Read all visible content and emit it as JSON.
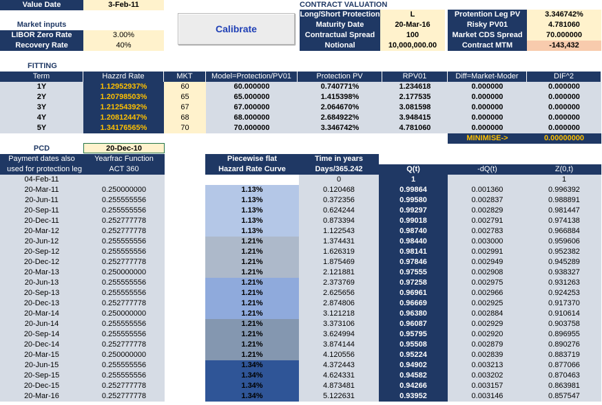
{
  "header": {
    "value_date_label": "Value Date",
    "value_date": "3-Feb-11",
    "market_inputs_label": "Market inputs",
    "libor_label": "LIBOR Zero Rate",
    "libor_value": "3.00%",
    "recovery_label": "Recovery Rate",
    "recovery_value": "40%"
  },
  "calibrate_button": "Calibrate",
  "contract": {
    "title": "CONTRACT VALUATION",
    "rows": [
      {
        "label": "Long/Short Protection",
        "value": "L"
      },
      {
        "label": "Maturity Date",
        "value": "20-Mar-16"
      },
      {
        "label": "Contractual Spread",
        "value": "100"
      },
      {
        "label": "Notional",
        "value": "10,000,000.00"
      }
    ],
    "right_rows": [
      {
        "label": "Protention Leg PV",
        "value": "3.346742%"
      },
      {
        "label": "Risky PV01",
        "value": "4.781060"
      },
      {
        "label": "Market CDS Spread",
        "value": "70.000000"
      },
      {
        "label": "Contract MTM",
        "value": "-143,432"
      }
    ]
  },
  "fitting": {
    "title": "FITTING",
    "headers": [
      "Term",
      "Hazzrd Rate",
      "MKT",
      "Model=Protection/PV01",
      "Protection PV",
      "RPV01",
      "Diff=Market-Moder",
      "DIF^2"
    ],
    "rows": [
      [
        "1Y",
        "1.12952937%",
        "60",
        "60.000000",
        "0.740771%",
        "1.234618",
        "0.000000",
        "0.000000"
      ],
      [
        "2Y",
        "1.20798503%",
        "65",
        "65.000000",
        "1.415398%",
        "2.177535",
        "0.000000",
        "0.000000"
      ],
      [
        "3Y",
        "1.21254392%",
        "67",
        "67.000000",
        "2.064670%",
        "3.081598",
        "0.000000",
        "0.000000"
      ],
      [
        "4Y",
        "1.20812447%",
        "68",
        "68.000000",
        "2.684922%",
        "3.948415",
        "0.000000",
        "0.000000"
      ],
      [
        "5Y",
        "1.34176565%",
        "70",
        "70.000000",
        "3.346742%",
        "4.781060",
        "0.000000",
        "0.000000"
      ]
    ],
    "minimise_label": "MINIMISE->",
    "minimise_value": "0.00000000"
  },
  "schedule": {
    "pcd_label": "PCD",
    "pcd_value": "20-Dec-10",
    "col1_header1": "Payment dates also",
    "col1_header2": "used for protection leg",
    "col2_header1": "Yearfrac Function",
    "col2_header2": "ACT 360",
    "hz_header1": "Piecewise flat",
    "hz_header2": "Hazard Rate Curve",
    "t_header1": "Time in years",
    "t_header2": "Days/365.242",
    "q_header": "Q(t)",
    "dq_header": "-dQ(t)",
    "z_header": "Z(0,t)",
    "first_row": {
      "date": "04-Feb-11",
      "t": "0",
      "q": "1",
      "z": "1"
    },
    "rows": [
      [
        "20-Mar-11",
        "0.250000000",
        "1.13%",
        "0.120468",
        "0.99864",
        "0.001360",
        "0.996392"
      ],
      [
        "20-Jun-11",
        "0.255555556",
        "1.13%",
        "0.372356",
        "0.99580",
        "0.002837",
        "0.988891"
      ],
      [
        "20-Sep-11",
        "0.255555556",
        "1.13%",
        "0.624244",
        "0.99297",
        "0.002829",
        "0.981447"
      ],
      [
        "20-Dec-11",
        "0.252777778",
        "1.13%",
        "0.873394",
        "0.99018",
        "0.002791",
        "0.974138"
      ],
      [
        "20-Mar-12",
        "0.252777778",
        "1.13%",
        "1.122543",
        "0.98740",
        "0.002783",
        "0.966884"
      ],
      [
        "20-Jun-12",
        "0.255555556",
        "1.21%",
        "1.374431",
        "0.98440",
        "0.003000",
        "0.959606"
      ],
      [
        "20-Sep-12",
        "0.255555556",
        "1.21%",
        "1.626319",
        "0.98141",
        "0.002991",
        "0.952382"
      ],
      [
        "20-Dec-12",
        "0.252777778",
        "1.21%",
        "1.875469",
        "0.97846",
        "0.002949",
        "0.945289"
      ],
      [
        "20-Mar-13",
        "0.250000000",
        "1.21%",
        "2.121881",
        "0.97555",
        "0.002908",
        "0.938327"
      ],
      [
        "20-Jun-13",
        "0.255555556",
        "1.21%",
        "2.373769",
        "0.97258",
        "0.002975",
        "0.931263"
      ],
      [
        "20-Sep-13",
        "0.255555556",
        "1.21%",
        "2.625656",
        "0.96961",
        "0.002966",
        "0.924253"
      ],
      [
        "20-Dec-13",
        "0.252777778",
        "1.21%",
        "2.874806",
        "0.96669",
        "0.002925",
        "0.917370"
      ],
      [
        "20-Mar-14",
        "0.250000000",
        "1.21%",
        "3.121218",
        "0.96380",
        "0.002884",
        "0.910614"
      ],
      [
        "20-Jun-14",
        "0.255555556",
        "1.21%",
        "3.373106",
        "0.96087",
        "0.002929",
        "0.903758"
      ],
      [
        "20-Sep-14",
        "0.255555556",
        "1.21%",
        "3.624994",
        "0.95795",
        "0.002920",
        "0.896955"
      ],
      [
        "20-Dec-14",
        "0.252777778",
        "1.21%",
        "3.874144",
        "0.95508",
        "0.002879",
        "0.890276"
      ],
      [
        "20-Mar-15",
        "0.250000000",
        "1.21%",
        "4.120556",
        "0.95224",
        "0.002839",
        "0.883719"
      ],
      [
        "20-Jun-15",
        "0.255555556",
        "1.34%",
        "4.372443",
        "0.94902",
        "0.003213",
        "0.877066"
      ],
      [
        "20-Sep-15",
        "0.255555556",
        "1.34%",
        "4.624331",
        "0.94582",
        "0.003202",
        "0.870463"
      ],
      [
        "20-Dec-15",
        "0.252777778",
        "1.34%",
        "4.873481",
        "0.94266",
        "0.003157",
        "0.863981"
      ],
      [
        "20-Mar-16",
        "0.252777778",
        "1.34%",
        "5.122631",
        "0.93952",
        "0.003146",
        "0.857547"
      ]
    ]
  },
  "colors": {
    "navy": "#1f3864",
    "cream": "#fff2cc",
    "grey": "#d6dce5",
    "orange_text": "#ffc000",
    "mtm_fill": "#f8cbad",
    "hz_band_1": "#b4c7e7",
    "hz_band_2": "#adb9ca",
    "hz_band_3": "#8faadc",
    "hz_band_4": "#8497b0",
    "hz_band_5": "#2f5597"
  }
}
